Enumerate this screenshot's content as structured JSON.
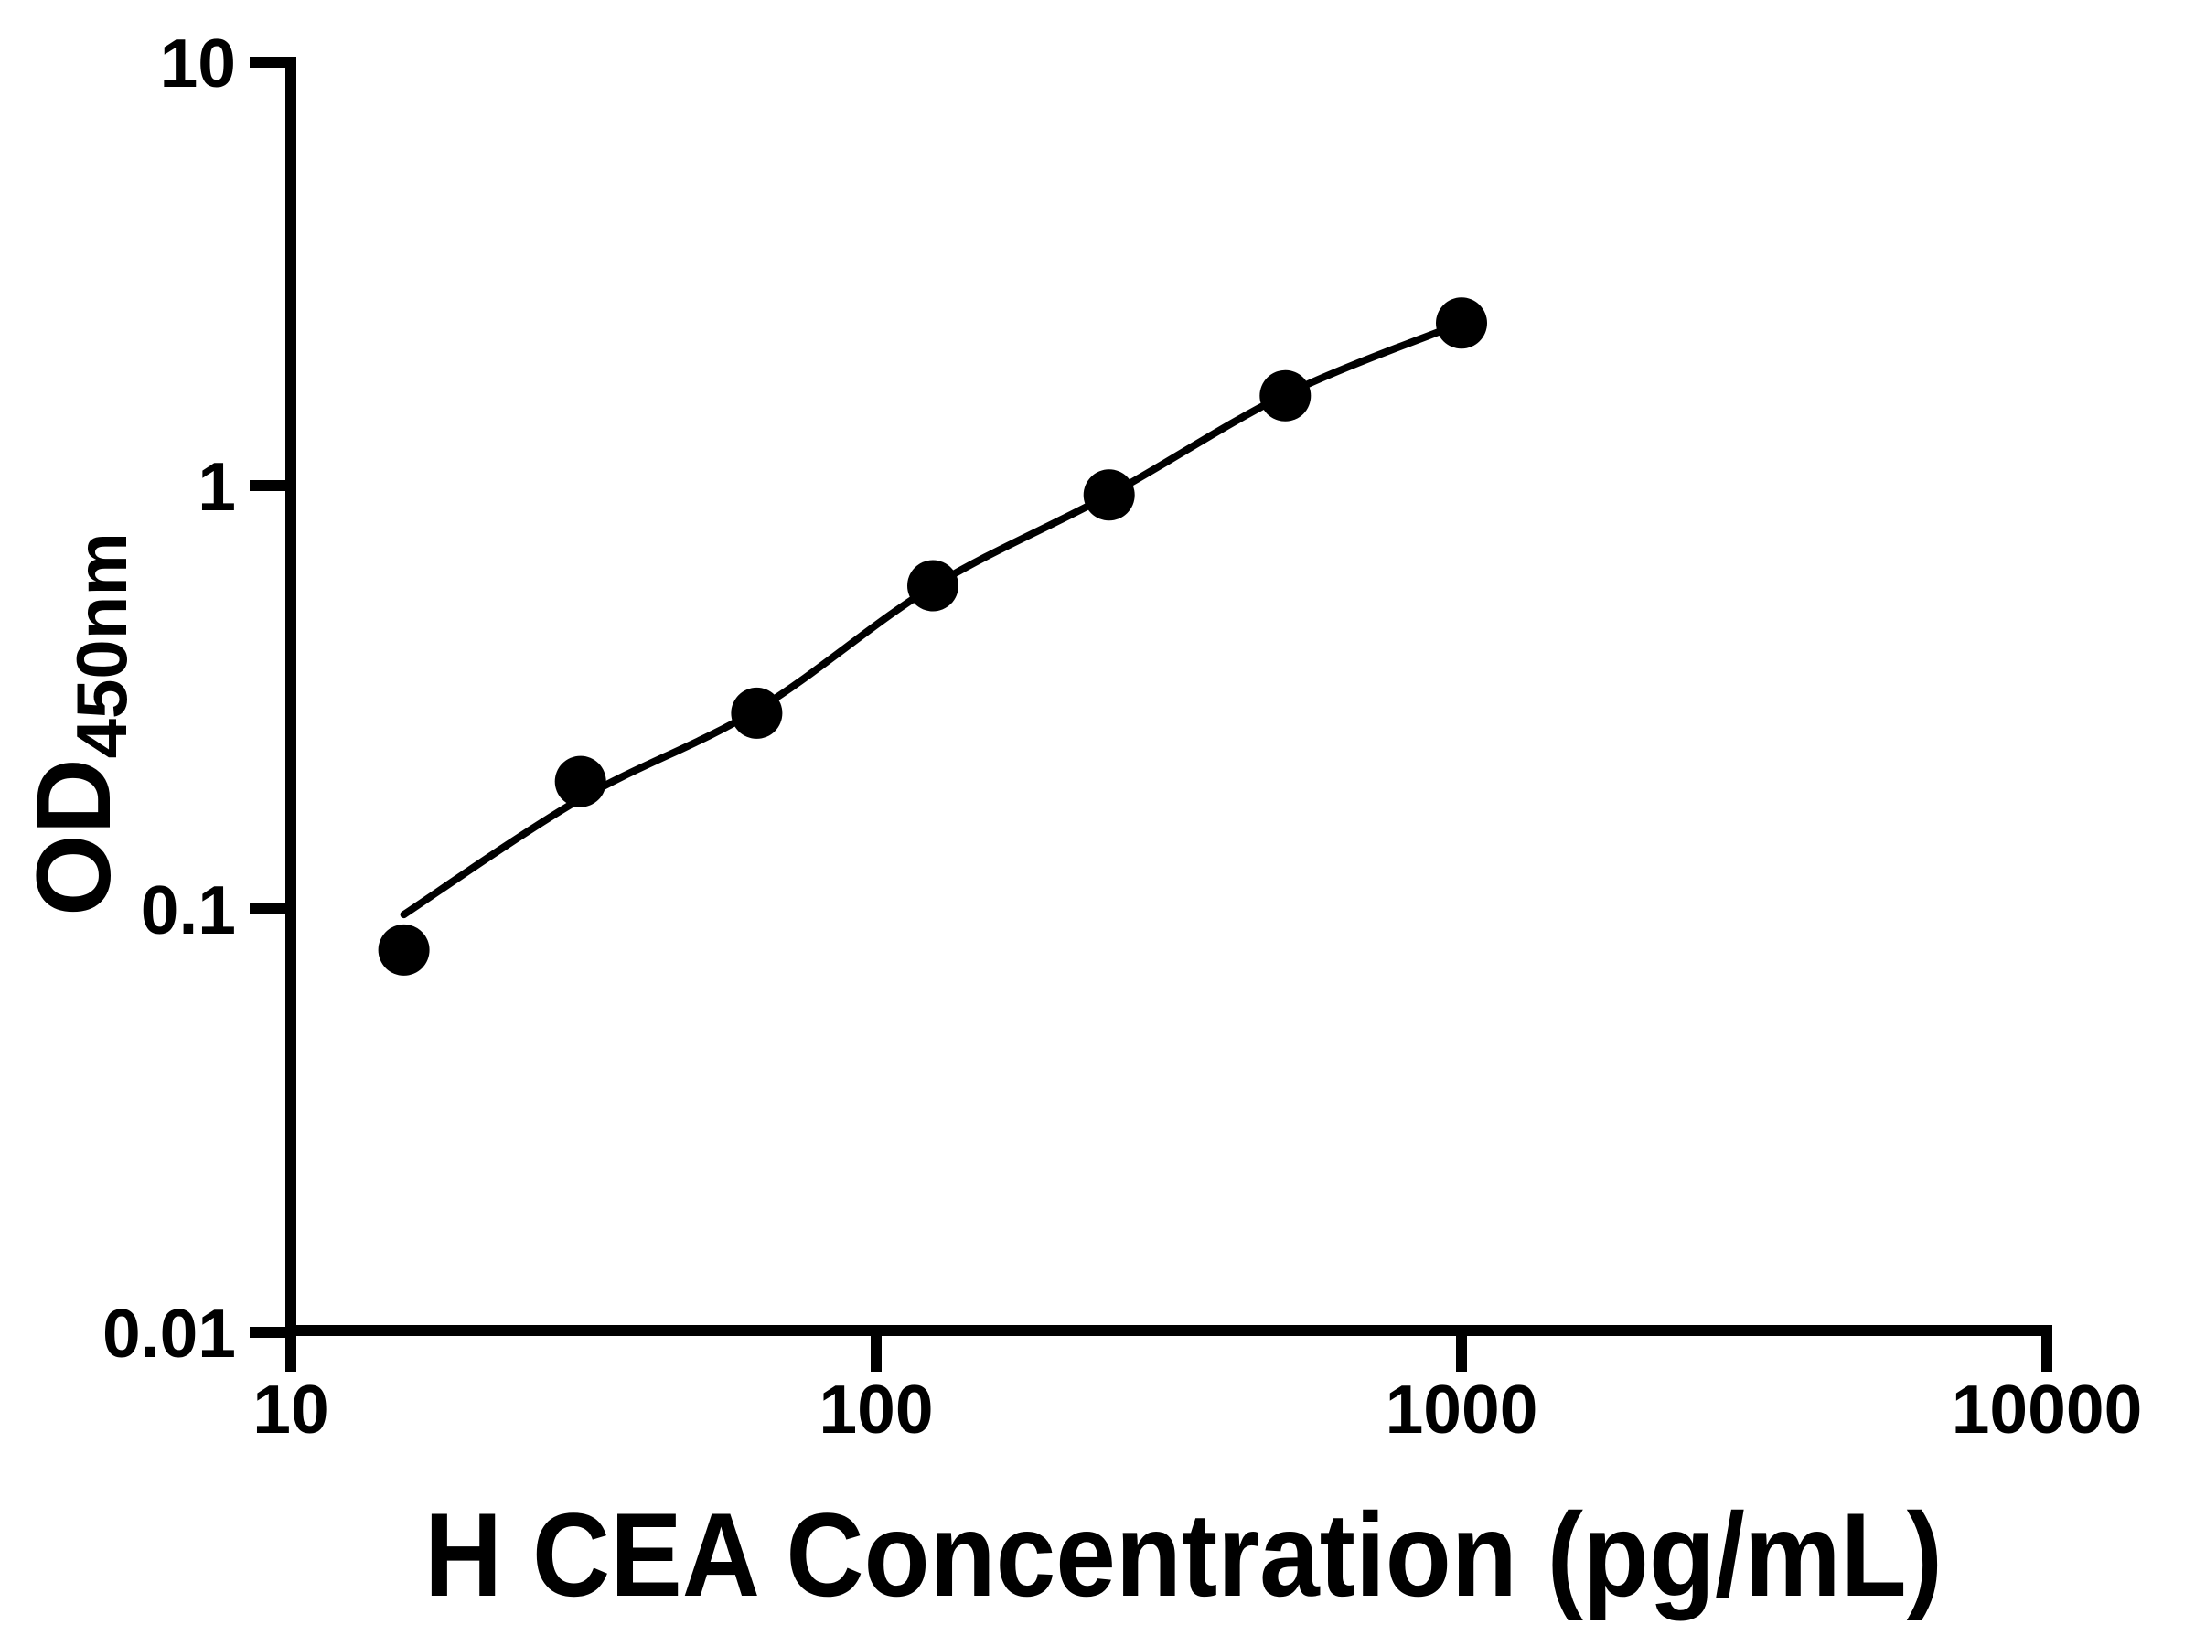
{
  "figure": {
    "background_color": "#ffffff",
    "ink_color": "#000000"
  },
  "chart_data": {
    "type": "scatter",
    "title": "",
    "xlabel": "H CEA Concentration (pg/mL)",
    "ylabel_main": "OD",
    "ylabel_sub": "450nm",
    "x_scale": "log",
    "y_scale": "log",
    "xlim": [
      10,
      10000
    ],
    "ylim": [
      0.01,
      10
    ],
    "x_ticks": [
      10,
      100,
      1000,
      10000
    ],
    "x_tick_labels": [
      "10",
      "100",
      "1000",
      "10000"
    ],
    "y_ticks": [
      0.01,
      0.1,
      1,
      10
    ],
    "y_tick_labels": [
      "0.01",
      "0.1",
      "1",
      "10"
    ],
    "grid": false,
    "legend": false,
    "series": [
      {
        "name": "standard-points",
        "marker": "circle",
        "color": "#000000",
        "x": [
          15.6,
          31.25,
          62.5,
          125,
          250,
          500,
          1000
        ],
        "y": [
          0.08,
          0.2,
          0.29,
          0.58,
          0.95,
          1.63,
          2.42
        ]
      }
    ],
    "fit_curve": {
      "name": "standard-curve-fit",
      "color": "#000000",
      "x": [
        15.6,
        31.25,
        62.5,
        125,
        250,
        500,
        1000
      ],
      "y": [
        0.097,
        0.182,
        0.295,
        0.578,
        0.95,
        1.64,
        2.42
      ]
    }
  }
}
